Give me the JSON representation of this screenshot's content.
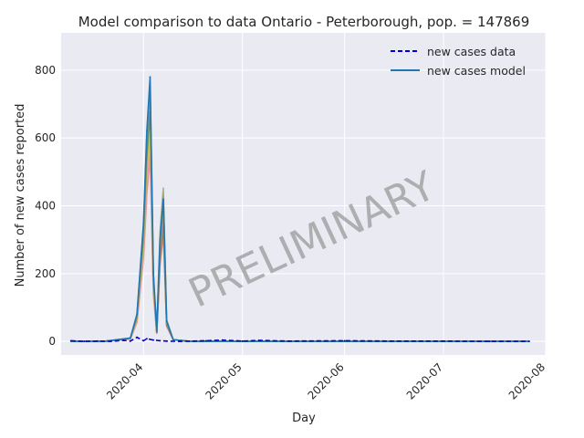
{
  "chart_data": {
    "type": "line",
    "title": "Model comparison to data Ontario - Peterborough, pop. = 147869",
    "xlabel": "Day",
    "ylabel": "Number of new cases reported",
    "watermark": "PRELIMINARY",
    "x_range": [
      "2020-03-07",
      "2020-08-01"
    ],
    "ylim": [
      -40,
      910
    ],
    "y_ticks": [
      0,
      200,
      400,
      600,
      800
    ],
    "x_ticks": [
      "2020-04",
      "2020-05",
      "2020-06",
      "2020-07",
      "2020-08"
    ],
    "grid": true,
    "legend_position": "top-right",
    "series": [
      {
        "name": "new cases data",
        "style": "dashed",
        "color": "#0000cc",
        "x": [
          "2020-03-10",
          "2020-03-14",
          "2020-03-18",
          "2020-03-22",
          "2020-03-26",
          "2020-03-28",
          "2020-03-30",
          "2020-04-01",
          "2020-04-02",
          "2020-04-04",
          "2020-04-06",
          "2020-04-08",
          "2020-04-12",
          "2020-04-20",
          "2020-04-25",
          "2020-05-01",
          "2020-05-06",
          "2020-05-15",
          "2020-06-01",
          "2020-06-15",
          "2020-07-01",
          "2020-07-15",
          "2020-07-27"
        ],
        "values": [
          2,
          0,
          1,
          0,
          3,
          1,
          12,
          2,
          8,
          4,
          2,
          1,
          0,
          2,
          4,
          1,
          3,
          1,
          2,
          1,
          1,
          0,
          0
        ]
      },
      {
        "name": "new cases model",
        "style": "solid",
        "color": "#1f77b4",
        "x": [
          "2020-03-10",
          "2020-03-20",
          "2020-03-28",
          "2020-03-30",
          "2020-04-01",
          "2020-04-02",
          "2020-04-03",
          "2020-04-04",
          "2020-04-05",
          "2020-04-06",
          "2020-04-07",
          "2020-04-08",
          "2020-04-10",
          "2020-04-15",
          "2020-05-01",
          "2020-07-27"
        ],
        "values": [
          0,
          0,
          10,
          80,
          350,
          620,
          780,
          200,
          30,
          300,
          420,
          60,
          5,
          0,
          0,
          0
        ]
      }
    ],
    "ensemble_colors": [
      "#d62728",
      "#ff7f0e",
      "#2ca02c",
      "#9467bd",
      "#8c564b",
      "#e377c2",
      "#bcbd22",
      "#17becf",
      "#7f7f7f",
      "#f0a0b0",
      "#dddd55",
      "#556b2f"
    ]
  }
}
